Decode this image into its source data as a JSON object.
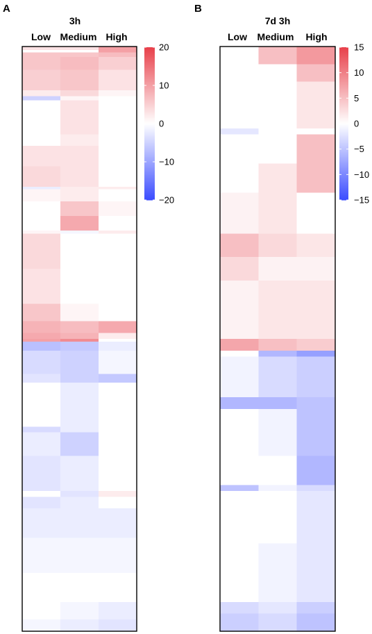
{
  "chart_data": [
    {
      "type": "heatmap",
      "panel_label": "A",
      "title": "3h",
      "columns": [
        "Low",
        "Medium",
        "High"
      ],
      "colorbar": {
        "min": -20,
        "max": 20,
        "ticks": [
          20,
          10,
          0,
          -10,
          -20
        ],
        "tick_labels": [
          "20",
          "10",
          "0",
          "−10",
          "−20"
        ],
        "low_color": "#3b4cff",
        "mid_color": "#ffffff",
        "high_color": "#e8404a"
      },
      "bands": [
        [
          0.0,
          0.006,
          3,
          3,
          10
        ],
        [
          0.006,
          0.01,
          0,
          0,
          10
        ],
        [
          0.01,
          0.018,
          6,
          6,
          7
        ],
        [
          0.018,
          0.04,
          6,
          7,
          5
        ],
        [
          0.04,
          0.075,
          5,
          6,
          3
        ],
        [
          0.075,
          0.085,
          2,
          4,
          1
        ],
        [
          0.085,
          0.092,
          -5,
          1,
          0
        ],
        [
          0.092,
          0.15,
          0,
          3,
          0
        ],
        [
          0.15,
          0.17,
          0,
          2,
          0
        ],
        [
          0.17,
          0.205,
          3,
          3,
          0
        ],
        [
          0.205,
          0.24,
          4,
          3,
          0
        ],
        [
          0.24,
          0.244,
          -2,
          2,
          2
        ],
        [
          0.244,
          0.265,
          1,
          2,
          0
        ],
        [
          0.265,
          0.29,
          0,
          6,
          1
        ],
        [
          0.29,
          0.315,
          0,
          9,
          0
        ],
        [
          0.315,
          0.32,
          1,
          -1,
          2
        ],
        [
          0.32,
          0.38,
          4,
          0,
          0
        ],
        [
          0.38,
          0.44,
          3,
          0,
          0
        ],
        [
          0.44,
          0.47,
          6,
          1,
          0
        ],
        [
          0.47,
          0.49,
          8,
          7,
          9
        ],
        [
          0.49,
          0.5,
          9,
          8,
          2
        ],
        [
          0.5,
          0.505,
          10,
          12,
          0
        ],
        [
          0.505,
          0.52,
          -7,
          -6,
          -2
        ],
        [
          0.52,
          0.56,
          -4,
          -5,
          -1
        ],
        [
          0.56,
          0.575,
          -3,
          -5,
          -6
        ],
        [
          0.575,
          0.65,
          0,
          -2,
          0
        ],
        [
          0.65,
          0.66,
          -4,
          -2,
          0
        ],
        [
          0.66,
          0.7,
          -2,
          -5,
          0
        ],
        [
          0.7,
          0.76,
          -3,
          -2,
          0
        ],
        [
          0.76,
          0.77,
          0,
          -3,
          2
        ],
        [
          0.77,
          0.79,
          -3,
          -2,
          0
        ],
        [
          0.79,
          0.84,
          -2,
          -2,
          -2
        ],
        [
          0.84,
          0.9,
          -1,
          -1,
          -1
        ],
        [
          0.9,
          0.95,
          0,
          0,
          0
        ],
        [
          0.95,
          0.98,
          0,
          -1,
          -2
        ],
        [
          0.98,
          1.0,
          -1,
          -2,
          -3
        ]
      ]
    },
    {
      "type": "heatmap",
      "panel_label": "B",
      "title": "7d 3h",
      "columns": [
        "Low",
        "Medium",
        "High"
      ],
      "colorbar": {
        "min": -15,
        "max": 15,
        "ticks": [
          15,
          10,
          5,
          0,
          -5,
          -10,
          -15
        ],
        "tick_labels": [
          "15",
          "10",
          "5",
          "0",
          "−5",
          "−10",
          "−15"
        ],
        "low_color": "#3b4cff",
        "mid_color": "#ffffff",
        "high_color": "#e8404a"
      },
      "bands": [
        [
          0.0,
          0.03,
          0,
          5,
          8
        ],
        [
          0.03,
          0.06,
          0,
          0,
          5
        ],
        [
          0.06,
          0.14,
          0,
          0,
          2
        ],
        [
          0.14,
          0.15,
          -2,
          0,
          0
        ],
        [
          0.15,
          0.2,
          0,
          0,
          5
        ],
        [
          0.2,
          0.25,
          0,
          2,
          5
        ],
        [
          0.25,
          0.32,
          1,
          2,
          0
        ],
        [
          0.32,
          0.36,
          5,
          3,
          2
        ],
        [
          0.36,
          0.4,
          3,
          1,
          1
        ],
        [
          0.4,
          0.5,
          1,
          2,
          2
        ],
        [
          0.5,
          0.52,
          7,
          5,
          4
        ],
        [
          0.52,
          0.53,
          0,
          -6,
          -8
        ],
        [
          0.53,
          0.6,
          -1,
          -3,
          -4
        ],
        [
          0.6,
          0.62,
          -6,
          -6,
          -5
        ],
        [
          0.62,
          0.7,
          0,
          -1,
          -5
        ],
        [
          0.7,
          0.75,
          0,
          0,
          -6
        ],
        [
          0.75,
          0.76,
          -5,
          -1,
          -3
        ],
        [
          0.76,
          0.85,
          0,
          0,
          -2
        ],
        [
          0.85,
          0.95,
          0,
          -1,
          -2
        ],
        [
          0.95,
          0.97,
          -3,
          -2,
          -4
        ],
        [
          0.97,
          1.0,
          -4,
          -3,
          -5
        ]
      ]
    }
  ]
}
